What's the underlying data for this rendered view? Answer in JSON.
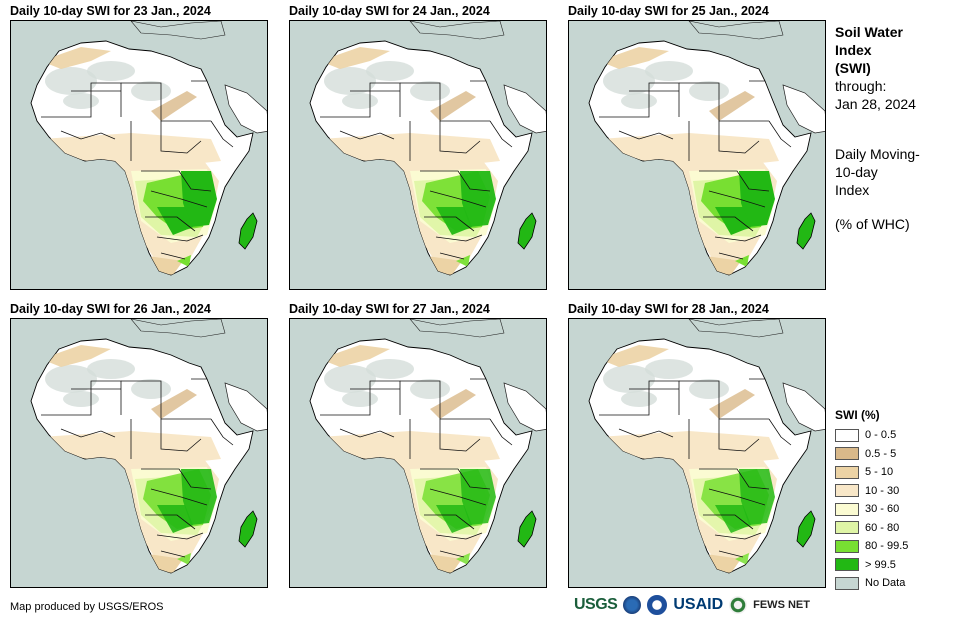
{
  "panels": [
    {
      "title": "Daily 10-day SWI for 23 Jan., 2024",
      "wet_level": 1.0
    },
    {
      "title": "Daily 10-day SWI for 24 Jan., 2024",
      "wet_level": 0.95
    },
    {
      "title": "Daily 10-day SWI for 25 Jan., 2024",
      "wet_level": 1.0
    },
    {
      "title": "Daily 10-day SWI for 26 Jan., 2024",
      "wet_level": 0.9
    },
    {
      "title": "Daily 10-day SWI for 27 Jan., 2024",
      "wet_level": 0.85
    },
    {
      "title": "Daily 10-day SWI for 28 Jan., 2024",
      "wet_level": 0.85
    }
  ],
  "side": {
    "title_line1": "Soil Water",
    "title_line2": "Index",
    "title_line3": "(SWI)",
    "through_label": "through:",
    "through_date": "Jan 28, 2024",
    "desc_line1": "Daily Moving-",
    "desc_line2": "10-day",
    "desc_line3": "Index",
    "units": "(% of WHC)"
  },
  "legend": {
    "title": "SWI (%)",
    "items": [
      {
        "label": "0 - 0.5",
        "color": "#ffffff"
      },
      {
        "label": "0.5 - 5",
        "color": "#d9b98a"
      },
      {
        "label": "5 - 10",
        "color": "#ecd3a5"
      },
      {
        "label": "10 - 30",
        "color": "#f8e7c8"
      },
      {
        "label": "30 - 60",
        "color": "#fbfbd2"
      },
      {
        "label": "60 - 80",
        "color": "#dff5a6"
      },
      {
        "label": "80 - 99.5",
        "color": "#78df32"
      },
      {
        "label": "> 99.5",
        "color": "#22b814"
      },
      {
        "label": "No Data",
        "color": "#c6d6d2"
      }
    ]
  },
  "footer": {
    "credit": "Map produced by USGS/EROS",
    "logo_usgs": "USGS",
    "logo_usaid": "USAID",
    "logo_fews": "FEWS NET"
  }
}
